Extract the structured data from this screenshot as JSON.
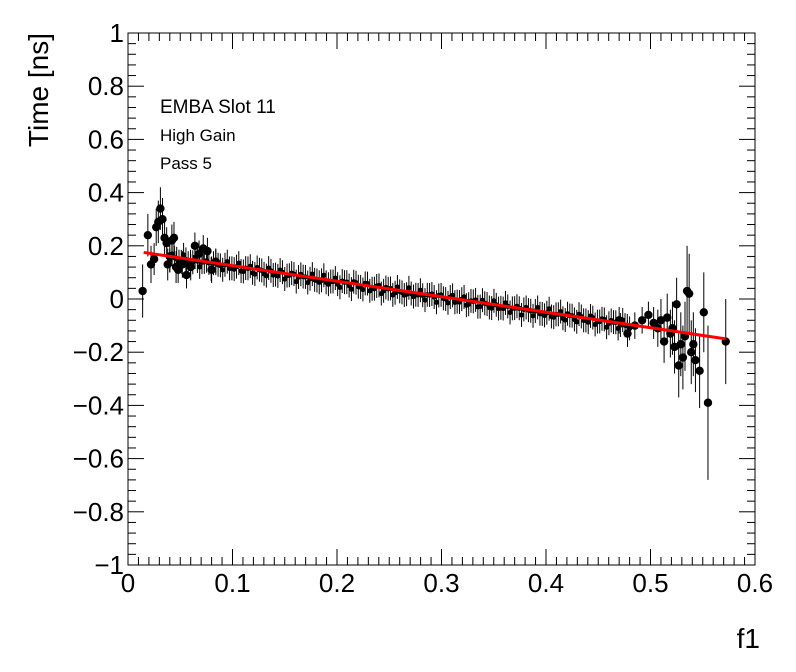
{
  "chart_data": {
    "type": "scatter",
    "title": "",
    "xlabel": "f1",
    "ylabel": "Time [ns]",
    "xlim": [
      0,
      0.6
    ],
    "ylim": [
      -1,
      1
    ],
    "x_major_ticks": [
      0,
      0.1,
      0.2,
      0.3,
      0.4,
      0.5,
      0.6
    ],
    "x_tick_labels": [
      "0",
      "0.1",
      "0.2",
      "0.3",
      "0.4",
      "0.5",
      "0.6"
    ],
    "y_major_ticks": [
      -1,
      -0.8,
      -0.6,
      -0.4,
      -0.2,
      0,
      0.2,
      0.4,
      0.6,
      0.8,
      1
    ],
    "y_tick_labels": [
      "−1",
      "−0.8",
      "−0.6",
      "−0.4",
      "−0.2",
      "0",
      "0.2",
      "0.4",
      "0.6",
      "0.8",
      "1"
    ],
    "grid": false,
    "annotations": [
      "EMBA Slot 11",
      "High Gain",
      "Pass 5"
    ],
    "colors": {
      "points": "#000000",
      "fit": "#ff0000"
    },
    "fit_line": {
      "x": [
        0.015,
        0.572
      ],
      "y": [
        0.175,
        -0.15
      ]
    },
    "dense_band": {
      "x_start": 0.04,
      "x_end": 0.48,
      "step": 0.0022,
      "y_at_start": 0.155,
      "y_at_end": -0.1,
      "error": 0.045
    },
    "series": [
      {
        "points": [
          {
            "x": 0.014,
            "y": 0.03,
            "err": 0.1
          },
          {
            "x": 0.019,
            "y": 0.24,
            "err": 0.08
          },
          {
            "x": 0.022,
            "y": 0.13,
            "err": 0.07
          },
          {
            "x": 0.025,
            "y": 0.15,
            "err": 0.06
          },
          {
            "x": 0.027,
            "y": 0.27,
            "err": 0.07
          },
          {
            "x": 0.029,
            "y": 0.29,
            "err": 0.08
          },
          {
            "x": 0.031,
            "y": 0.34,
            "err": 0.08
          },
          {
            "x": 0.033,
            "y": 0.3,
            "err": 0.08
          },
          {
            "x": 0.035,
            "y": 0.23,
            "err": 0.07
          },
          {
            "x": 0.037,
            "y": 0.21,
            "err": 0.06
          },
          {
            "x": 0.038,
            "y": 0.13,
            "err": 0.06
          },
          {
            "x": 0.04,
            "y": 0.16,
            "err": 0.06
          },
          {
            "x": 0.042,
            "y": 0.22,
            "err": 0.06
          },
          {
            "x": 0.044,
            "y": 0.23,
            "err": 0.06
          },
          {
            "x": 0.046,
            "y": 0.12,
            "err": 0.06
          },
          {
            "x": 0.048,
            "y": 0.11,
            "err": 0.05
          },
          {
            "x": 0.052,
            "y": 0.13,
            "err": 0.05
          },
          {
            "x": 0.056,
            "y": 0.09,
            "err": 0.05
          },
          {
            "x": 0.06,
            "y": 0.12,
            "err": 0.05
          },
          {
            "x": 0.064,
            "y": 0.2,
            "err": 0.05
          },
          {
            "x": 0.068,
            "y": 0.17,
            "err": 0.05
          },
          {
            "x": 0.072,
            "y": 0.19,
            "err": 0.05
          },
          {
            "x": 0.076,
            "y": 0.18,
            "err": 0.05
          },
          {
            "x": 0.08,
            "y": 0.11,
            "err": 0.05
          },
          {
            "x": 0.084,
            "y": 0.14,
            "err": 0.05
          },
          {
            "x": 0.47,
            "y": -0.08,
            "err": 0.05
          },
          {
            "x": 0.478,
            "y": -0.13,
            "err": 0.05
          },
          {
            "x": 0.485,
            "y": -0.1,
            "err": 0.05
          },
          {
            "x": 0.492,
            "y": -0.08,
            "err": 0.05
          },
          {
            "x": 0.498,
            "y": -0.06,
            "err": 0.05
          },
          {
            "x": 0.503,
            "y": -0.09,
            "err": 0.06
          },
          {
            "x": 0.507,
            "y": -0.11,
            "err": 0.07
          },
          {
            "x": 0.51,
            "y": -0.08,
            "err": 0.08
          },
          {
            "x": 0.513,
            "y": -0.16,
            "err": 0.08
          },
          {
            "x": 0.516,
            "y": -0.07,
            "err": 0.09
          },
          {
            "x": 0.519,
            "y": -0.13,
            "err": 0.09
          },
          {
            "x": 0.521,
            "y": -0.11,
            "err": 0.1
          },
          {
            "x": 0.523,
            "y": -0.18,
            "err": 0.1
          },
          {
            "x": 0.525,
            "y": -0.02,
            "err": 0.1
          },
          {
            "x": 0.527,
            "y": -0.25,
            "err": 0.12
          },
          {
            "x": 0.529,
            "y": -0.17,
            "err": 0.12
          },
          {
            "x": 0.531,
            "y": -0.22,
            "err": 0.12
          },
          {
            "x": 0.533,
            "y": -0.14,
            "err": 0.13
          },
          {
            "x": 0.535,
            "y": 0.03,
            "err": 0.17
          },
          {
            "x": 0.537,
            "y": 0.02,
            "err": 0.15
          },
          {
            "x": 0.539,
            "y": -0.2,
            "err": 0.12
          },
          {
            "x": 0.541,
            "y": -0.17,
            "err": 0.12
          },
          {
            "x": 0.543,
            "y": -0.23,
            "err": 0.12
          },
          {
            "x": 0.547,
            "y": -0.27,
            "err": 0.14
          },
          {
            "x": 0.551,
            "y": -0.05,
            "err": 0.15
          },
          {
            "x": 0.555,
            "y": -0.39,
            "err": 0.29
          },
          {
            "x": 0.572,
            "y": -0.16,
            "err": 0.16
          }
        ]
      }
    ]
  }
}
